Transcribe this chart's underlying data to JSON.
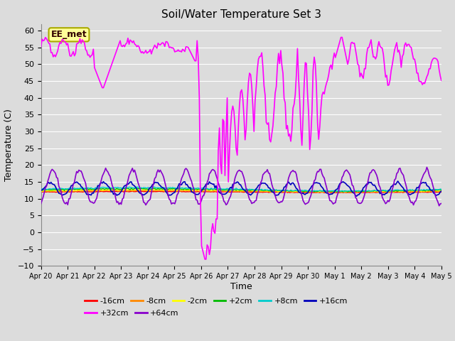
{
  "title": "Soil/Water Temperature Set 3",
  "xlabel": "Time",
  "ylabel": "Temperature (C)",
  "ylim": [
    -10,
    62
  ],
  "yticks": [
    -10,
    -5,
    0,
    5,
    10,
    15,
    20,
    25,
    30,
    35,
    40,
    45,
    50,
    55,
    60
  ],
  "background_color": "#dcdcdc",
  "plot_bg_color": "#dcdcdc",
  "grid_color": "#ffffff",
  "legend_labels": [
    "-16cm",
    "-8cm",
    "-2cm",
    "+2cm",
    "+8cm",
    "+16cm",
    "+32cm",
    "+64cm"
  ],
  "legend_colors": [
    "#ff0000",
    "#ff8800",
    "#ffff00",
    "#00bb00",
    "#00cccc",
    "#0000bb",
    "#ff00ff",
    "#8800cc"
  ],
  "annotation_text": "EE_met",
  "annotation_bg": "#ffff99",
  "annotation_border": "#aaaa00"
}
